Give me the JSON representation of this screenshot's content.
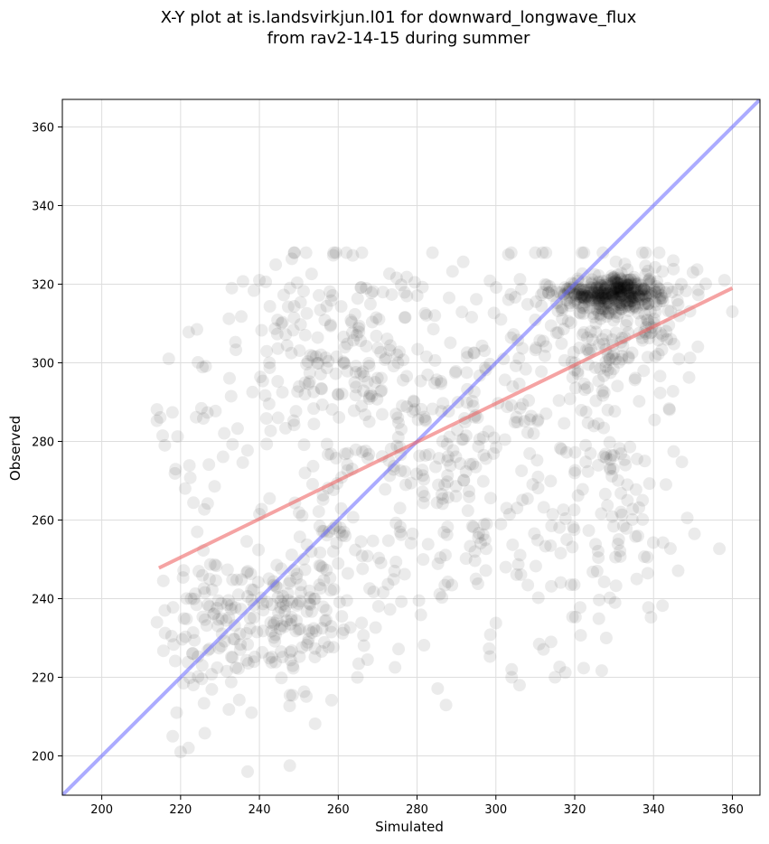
{
  "chart_data": {
    "type": "scatter",
    "title_line1": "X-Y plot at is.landsvirkjun.l01 for downward_longwave_flux",
    "title_line2": "from rav2-14-15 during summer",
    "xlabel": "Simulated",
    "ylabel": "Observed",
    "xlim": [
      190,
      367
    ],
    "ylim": [
      190,
      367
    ],
    "x_ticks": [
      200,
      220,
      240,
      260,
      280,
      300,
      320,
      340,
      360
    ],
    "y_ticks": [
      200,
      220,
      240,
      260,
      280,
      300,
      320,
      340,
      360
    ],
    "grid": true,
    "point_color": "#000000",
    "point_opacity": 0.08,
    "identity_line": {
      "name": "1:1 line",
      "color": "#6666ff",
      "x": [
        190,
        367
      ],
      "y": [
        190,
        367
      ]
    },
    "fit_line": {
      "name": "regression",
      "color": "#ee6666",
      "x": [
        214.5,
        360
      ],
      "y": [
        247.8,
        319
      ]
    },
    "clusters": [
      {
        "cx": 228,
        "cy": 232,
        "sx": 6,
        "sy": 10,
        "n": 90
      },
      {
        "cx": 245,
        "cy": 235,
        "sx": 7,
        "sy": 9,
        "n": 90
      },
      {
        "cx": 258,
        "cy": 245,
        "sx": 10,
        "sy": 14,
        "n": 120
      },
      {
        "cx": 255,
        "cy": 300,
        "sx": 14,
        "sy": 14,
        "n": 150
      },
      {
        "cx": 275,
        "cy": 295,
        "sx": 15,
        "sy": 16,
        "n": 110
      },
      {
        "cx": 290,
        "cy": 270,
        "sx": 14,
        "sy": 20,
        "n": 110
      },
      {
        "cx": 305,
        "cy": 300,
        "sx": 12,
        "sy": 16,
        "n": 90
      },
      {
        "cx": 300,
        "cy": 250,
        "sx": 15,
        "sy": 15,
        "n": 60
      },
      {
        "cx": 325,
        "cy": 317,
        "sx": 6,
        "sy": 2,
        "n": 160
      },
      {
        "cx": 333,
        "cy": 318,
        "sx": 5,
        "sy": 2,
        "n": 180
      },
      {
        "cx": 330,
        "cy": 305,
        "sx": 7,
        "sy": 12,
        "n": 130
      },
      {
        "cx": 330,
        "cy": 260,
        "sx": 9,
        "sy": 18,
        "n": 90
      },
      {
        "cx": 340,
        "cy": 315,
        "sx": 6,
        "sy": 6,
        "n": 60
      },
      {
        "cx": 225,
        "cy": 285,
        "sx": 8,
        "sy": 15,
        "n": 25
      }
    ],
    "extra_points": [
      [
        237,
        196
      ],
      [
        220,
        201
      ],
      [
        222,
        202
      ],
      [
        218,
        205
      ],
      [
        219,
        211
      ],
      [
        238,
        211
      ],
      [
        360,
        313
      ],
      [
        358,
        321
      ],
      [
        350,
        323
      ],
      [
        345,
        326
      ],
      [
        310,
        328
      ],
      [
        266,
        328
      ],
      [
        240,
        321
      ],
      [
        233,
        319
      ],
      [
        217,
        301
      ],
      [
        216,
        279
      ],
      [
        214,
        234
      ],
      [
        216,
        237
      ],
      [
        304,
        220
      ],
      [
        315,
        220
      ],
      [
        306,
        218
      ],
      [
        304,
        222
      ],
      [
        314,
        229
      ],
      [
        328,
        230
      ]
    ]
  }
}
